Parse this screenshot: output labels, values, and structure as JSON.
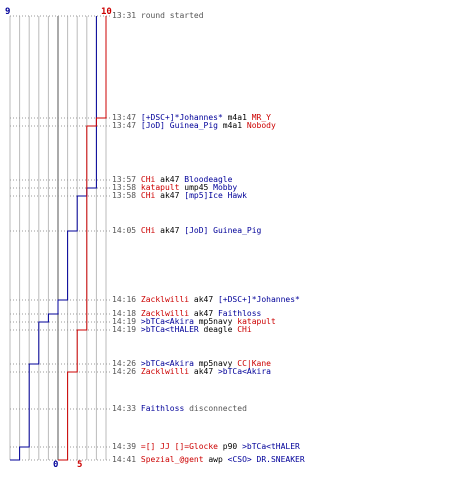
{
  "axis": {
    "top_blue_label": "9",
    "top_red_label": "10",
    "bottom_blue_label": "0",
    "bottom_red_label": "5"
  },
  "colors": {
    "team_blue": "#000099",
    "team_red": "#cc0000",
    "time": "#555555"
  },
  "chart_data": {
    "type": "line",
    "series": [
      {
        "values": [
          9,
          9,
          8,
          7,
          6,
          5,
          4,
          3,
          2,
          1,
          0
        ]
      },
      {
        "values": [
          10,
          9,
          8,
          7,
          6,
          5
        ]
      }
    ],
    "xlabel": "",
    "ylabel": ""
  },
  "events": [
    {
      "time": "13:31",
      "parts": [
        {
          "t": "round started",
          "c": "msg"
        }
      ]
    },
    {
      "time": "13:47",
      "parts": [
        {
          "t": "[+DSC+]*Johannes*",
          "c": "blue"
        },
        {
          "t": " m4a1 ",
          "c": "blk"
        },
        {
          "t": "MR_Y",
          "c": "red"
        }
      ]
    },
    {
      "time": "13:47",
      "parts": [
        {
          "t": "[JoD] Guinea_Pig",
          "c": "blue"
        },
        {
          "t": " m4a1 ",
          "c": "blk"
        },
        {
          "t": "Nobody",
          "c": "red"
        }
      ]
    },
    {
      "time": "13:57",
      "parts": [
        {
          "t": "CHi",
          "c": "red"
        },
        {
          "t": " ak47 ",
          "c": "blk"
        },
        {
          "t": "Bloodeagle",
          "c": "blue"
        }
      ]
    },
    {
      "time": "13:58",
      "parts": [
        {
          "t": "katapult",
          "c": "red"
        },
        {
          "t": " ump45 ",
          "c": "blk"
        },
        {
          "t": "Mobby",
          "c": "blue"
        }
      ]
    },
    {
      "time": "13:58",
      "parts": [
        {
          "t": "CHi",
          "c": "red"
        },
        {
          "t": " ak47 ",
          "c": "blk"
        },
        {
          "t": "[mp5]Ice Hawk",
          "c": "blue"
        }
      ]
    },
    {
      "time": "14:05",
      "parts": [
        {
          "t": "CHi",
          "c": "red"
        },
        {
          "t": " ak47 ",
          "c": "blk"
        },
        {
          "t": "[JoD] Guinea_Pig",
          "c": "blue"
        }
      ]
    },
    {
      "time": "14:16",
      "parts": [
        {
          "t": "Zacklwilli",
          "c": "red"
        },
        {
          "t": " ak47 ",
          "c": "blk"
        },
        {
          "t": "[+DSC+]*Johannes*",
          "c": "blue"
        }
      ]
    },
    {
      "time": "14:18",
      "parts": [
        {
          "t": "Zacklwilli",
          "c": "red"
        },
        {
          "t": " ak47 ",
          "c": "blk"
        },
        {
          "t": "Faithloss",
          "c": "blue"
        }
      ]
    },
    {
      "time": "14:19",
      "parts": [
        {
          "t": ">bTCa<Akira",
          "c": "blue"
        },
        {
          "t": " mp5navy ",
          "c": "blk"
        },
        {
          "t": "katapult",
          "c": "red"
        }
      ]
    },
    {
      "time": "14:19",
      "parts": [
        {
          "t": ">bTCa<tHALER",
          "c": "blue"
        },
        {
          "t": " deagle ",
          "c": "blk"
        },
        {
          "t": "CHi",
          "c": "red"
        }
      ]
    },
    {
      "time": "14:26",
      "parts": [
        {
          "t": ">bTCa<Akira",
          "c": "blue"
        },
        {
          "t": " mp5navy ",
          "c": "blk"
        },
        {
          "t": "CC|Kane",
          "c": "red"
        }
      ]
    },
    {
      "time": "14:26",
      "parts": [
        {
          "t": "Zacklwilli",
          "c": "red"
        },
        {
          "t": " ak47 ",
          "c": "blk"
        },
        {
          "t": ">bTCa<Akira",
          "c": "blue"
        }
      ]
    },
    {
      "time": "14:33",
      "parts": [
        {
          "t": "Faithloss",
          "c": "blue"
        },
        {
          "t": " disconnected",
          "c": "msg"
        }
      ]
    },
    {
      "time": "14:39",
      "parts": [
        {
          "t": "=[] JJ []=Glocke",
          "c": "red"
        },
        {
          "t": " p90 ",
          "c": "blk"
        },
        {
          "t": ">bTCa<tHALER",
          "c": "blue"
        }
      ]
    },
    {
      "time": "14:41",
      "parts": [
        {
          "t": "Spezial_@gent",
          "c": "red"
        },
        {
          "t": " awp ",
          "c": "blk"
        },
        {
          "t": "<CSO> DR.SNEAKER",
          "c": "blue"
        }
      ]
    }
  ]
}
